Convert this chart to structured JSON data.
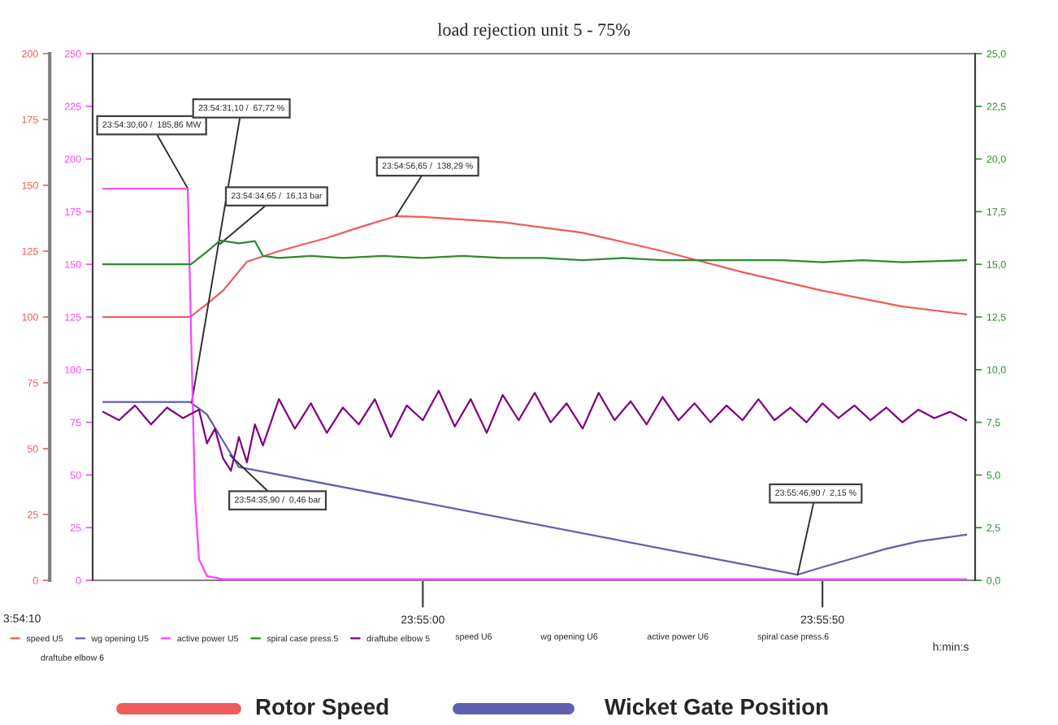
{
  "chart_data": {
    "type": "line",
    "title": "load rejection unit 5 - 75%",
    "xlabel": "h:min:s",
    "xlim": [
      23.905194,
      23.935861
    ],
    "xticks": [
      {
        "value": 23.916667,
        "label": "23:55:00"
      },
      {
        "value": 23.930556,
        "label": "23:55:50"
      }
    ],
    "ylim": [
      0,
      200
    ],
    "yticks": [
      0,
      25,
      50,
      75,
      100,
      125,
      150,
      175,
      200
    ],
    "y2lim": [
      0,
      250
    ],
    "y2ticks": [
      0,
      25,
      50,
      75,
      100,
      125,
      150,
      175,
      200,
      225,
      250
    ],
    "y3lim": [
      0,
      25
    ],
    "y3ticks": [
      {
        "value": 0,
        "label": "0,0"
      },
      {
        "value": 2.5,
        "label": "2,5"
      },
      {
        "value": 5,
        "label": "5,0"
      },
      {
        "value": 7.5,
        "label": "7,5"
      },
      {
        "value": 10,
        "label": "10,0"
      },
      {
        "value": 12.5,
        "label": "12,5"
      },
      {
        "value": 15,
        "label": "15,0"
      },
      {
        "value": 17.5,
        "label": "17,5"
      },
      {
        "value": 20,
        "label": "20,0"
      },
      {
        "value": 22.5,
        "label": "22,5"
      },
      {
        "value": 25,
        "label": "25,0"
      }
    ],
    "grid": false,
    "legend": "bottom",
    "series": [
      {
        "name": "speed U5",
        "color": "#f05a5a",
        "axis": "y",
        "x": [
          23.905556,
          23.908583,
          23.909167,
          23.909722,
          23.910556,
          23.911667,
          23.913333,
          23.914444,
          23.915736,
          23.916667,
          23.919444,
          23.922222,
          23.925,
          23.927778,
          23.930556,
          23.933333,
          23.935556
        ],
        "values": [
          100,
          100,
          105,
          110,
          121,
          125,
          130,
          134,
          138.29,
          138,
          136,
          132,
          125,
          117,
          110,
          104,
          101
        ]
      },
      {
        "name": "wg opening U5",
        "color": "#5f5fb0",
        "axis": "y",
        "x": [
          23.905556,
          23.908583,
          23.909167,
          23.909722,
          23.910278,
          23.929694,
          23.930556,
          23.931667,
          23.932778,
          23.933889,
          23.935556
        ],
        "values": [
          67.72,
          67.72,
          63,
          53,
          43,
          2.15,
          5,
          8.5,
          12,
          14.8,
          17.3
        ]
      },
      {
        "name": "active power U5",
        "color": "#ff40ff",
        "axis": "y2",
        "x": [
          23.905556,
          23.9085,
          23.908611,
          23.90875,
          23.908889,
          23.909167,
          23.909722,
          23.935556
        ],
        "values": [
          185.86,
          185.86,
          120,
          40,
          10,
          2,
          0.5,
          0.5
        ]
      },
      {
        "name": "spiral case press.5",
        "color": "#2e8b2e",
        "axis": "y3",
        "x": [
          23.905556,
          23.908333,
          23.908611,
          23.909167,
          23.909625,
          23.910278,
          23.910833,
          23.911111,
          23.911667,
          23.912778,
          23.913889,
          23.915278,
          23.916667,
          23.918056,
          23.919444,
          23.920833,
          23.922222,
          23.923611,
          23.925,
          23.926389,
          23.927778,
          23.929167,
          23.930556,
          23.931944,
          23.933333,
          23.935556
        ],
        "values": [
          15.0,
          15.0,
          15.0,
          15.6,
          16.13,
          16.0,
          16.1,
          15.4,
          15.3,
          15.4,
          15.3,
          15.4,
          15.3,
          15.4,
          15.3,
          15.3,
          15.2,
          15.3,
          15.2,
          15.2,
          15.2,
          15.2,
          15.1,
          15.2,
          15.1,
          15.2
        ]
      },
      {
        "name": "draftube elbow 5",
        "color": "#800080",
        "axis": "y3",
        "x": [
          23.905556,
          23.906111,
          23.906667,
          23.907222,
          23.907778,
          23.908333,
          23.908889,
          23.909167,
          23.909444,
          23.909722,
          23.91,
          23.910278,
          23.910556,
          23.910833,
          23.911111,
          23.911667,
          23.912222,
          23.912778,
          23.913333,
          23.913889,
          23.914444,
          23.915,
          23.915556,
          23.916111,
          23.916667,
          23.917222,
          23.917778,
          23.918333,
          23.918889,
          23.919444,
          23.92,
          23.920556,
          23.921111,
          23.921667,
          23.922222,
          23.922778,
          23.923333,
          23.923889,
          23.924444,
          23.925,
          23.925556,
          23.926111,
          23.926667,
          23.927222,
          23.927778,
          23.928333,
          23.928889,
          23.929444,
          23.93,
          23.930556,
          23.931111,
          23.931667,
          23.932222,
          23.932778,
          23.933333,
          23.933889,
          23.934444,
          23.935,
          23.935556
        ],
        "values": [
          8.0,
          7.6,
          8.3,
          7.4,
          8.2,
          7.7,
          8.1,
          6.5,
          7.2,
          5.8,
          5.2,
          6.8,
          5.6,
          7.4,
          6.4,
          8.6,
          7.2,
          8.4,
          7.0,
          8.2,
          7.4,
          8.6,
          6.8,
          8.3,
          7.6,
          9.0,
          7.3,
          8.6,
          7.0,
          8.8,
          7.6,
          8.9,
          7.5,
          8.4,
          7.2,
          8.9,
          7.6,
          8.5,
          7.4,
          8.7,
          7.6,
          8.4,
          7.5,
          8.3,
          7.6,
          8.6,
          7.6,
          8.2,
          7.5,
          8.4,
          7.7,
          8.3,
          7.6,
          8.2,
          7.5,
          8.1,
          7.7,
          8.0,
          7.6
        ]
      }
    ],
    "annotations": [
      {
        "text": "23:54:30,60 /  185,86 MW",
        "x": 23.9085,
        "y": 148.8
      },
      {
        "text": "23:54:31,10 /  67,72 %",
        "x": 23.908639,
        "y": 67.72
      },
      {
        "text": "23:54:34,65 /  16,13 bar",
        "x": 23.909625,
        "y": 127.8
      },
      {
        "text": "23:54:56,65 /  138,29 %",
        "x": 23.915736,
        "y": 138.29
      },
      {
        "text": "23:54:35,90 /  0,46 bar",
        "x": 23.909972,
        "y": 47.5
      },
      {
        "text": "23:55:46,90 /  2,15 %",
        "x": 23.929694,
        "y": 2.15
      },
      "3:54:10",
      "speed U6",
      "wg opening U6",
      "active power U6",
      "spiral case press.6",
      "draftube elbow 6",
      "Rotor Speed",
      "Wicket Gate Position"
    ]
  }
}
